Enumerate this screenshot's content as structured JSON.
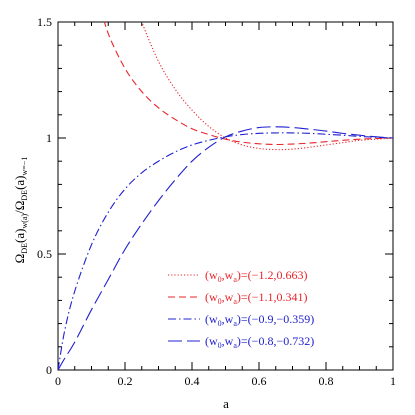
{
  "chart_data": {
    "type": "line",
    "title": "",
    "xlabel": "a",
    "ylabel_parts": {
      "num_main": "Ω",
      "num_sub": "DE",
      "num_arg": "(a)",
      "num_arg_sub": "w(a)",
      "slash": "/",
      "den_main": "Ω",
      "den_sub": "DE",
      "den_arg": "(a)",
      "den_arg_sub": "w=−1"
    },
    "xlim": [
      0,
      1
    ],
    "ylim": [
      0,
      1.5
    ],
    "xticks": [
      0,
      0.2,
      0.4,
      0.6,
      0.8,
      1
    ],
    "xtick_labels": [
      "0",
      "0.2",
      "0.4",
      "0.6",
      "0.8",
      "1"
    ],
    "yticks": [
      0,
      0.5,
      1,
      1.5
    ],
    "ytick_labels": [
      "0",
      "0.5",
      "1",
      "1.5"
    ],
    "grid": false,
    "legend_position": "bottom-right",
    "series": [
      {
        "legend": {
          "w0_label": "w",
          "w0_sub": "0",
          "wa_label": "w",
          "wa_sub": "a",
          "values": "=(−1.2,0.663)"
        },
        "color": "#e8252b",
        "dash": "dotted",
        "x": [
          0.22,
          0.25,
          0.3,
          0.35,
          0.4,
          0.45,
          0.5,
          0.55,
          0.6,
          0.65,
          0.7,
          0.75,
          0.8,
          0.85,
          0.9,
          0.95,
          1.0
        ],
        "y": [
          1.62,
          1.5,
          1.33,
          1.21,
          1.12,
          1.05,
          1.0,
          0.97,
          0.955,
          0.95,
          0.952,
          0.96,
          0.97,
          0.98,
          0.99,
          0.995,
          1.0
        ]
      },
      {
        "legend": {
          "w0_label": "w",
          "w0_sub": "0",
          "wa_label": "w",
          "wa_sub": "a",
          "values": "=(−1.1,0.341)"
        },
        "color": "#e8252b",
        "dash": "dashed",
        "x": [
          0.12,
          0.15,
          0.2,
          0.25,
          0.3,
          0.35,
          0.4,
          0.45,
          0.5,
          0.55,
          0.6,
          0.65,
          0.7,
          0.75,
          0.8,
          0.85,
          0.9,
          0.95,
          1.0
        ],
        "y": [
          1.6,
          1.45,
          1.3,
          1.2,
          1.13,
          1.08,
          1.04,
          1.015,
          0.995,
          0.982,
          0.975,
          0.972,
          0.974,
          0.978,
          0.984,
          0.99,
          0.995,
          0.998,
          1.0
        ]
      },
      {
        "legend": {
          "w0_label": "w",
          "w0_sub": "0",
          "wa_label": "w",
          "wa_sub": "a",
          "values": "=(−0.9,−0.359)"
        },
        "color": "#2020d0",
        "dash": "dashdot",
        "x": [
          0,
          0.02,
          0.05,
          0.1,
          0.15,
          0.2,
          0.25,
          0.3,
          0.35,
          0.4,
          0.45,
          0.5,
          0.55,
          0.6,
          0.65,
          0.7,
          0.75,
          0.8,
          0.85,
          0.9,
          0.95,
          1.0
        ],
        "y": [
          0,
          0.17,
          0.34,
          0.54,
          0.68,
          0.78,
          0.85,
          0.9,
          0.94,
          0.97,
          0.99,
          1.005,
          1.015,
          1.02,
          1.022,
          1.022,
          1.02,
          1.016,
          1.012,
          1.007,
          1.003,
          1.0
        ]
      },
      {
        "legend": {
          "w0_label": "w",
          "w0_sub": "0",
          "wa_label": "w",
          "wa_sub": "a",
          "values": "=(−0.8,−0.732)"
        },
        "color": "#2020d0",
        "dash": "longdash",
        "x": [
          0,
          0.02,
          0.05,
          0.1,
          0.15,
          0.2,
          0.25,
          0.3,
          0.35,
          0.4,
          0.45,
          0.5,
          0.55,
          0.6,
          0.65,
          0.7,
          0.75,
          0.8,
          0.85,
          0.9,
          0.95,
          1.0
        ],
        "y": [
          0,
          0.05,
          0.12,
          0.26,
          0.39,
          0.52,
          0.63,
          0.73,
          0.82,
          0.9,
          0.96,
          1.005,
          1.03,
          1.045,
          1.048,
          1.045,
          1.038,
          1.03,
          1.02,
          1.012,
          1.005,
          1.0
        ]
      }
    ]
  }
}
